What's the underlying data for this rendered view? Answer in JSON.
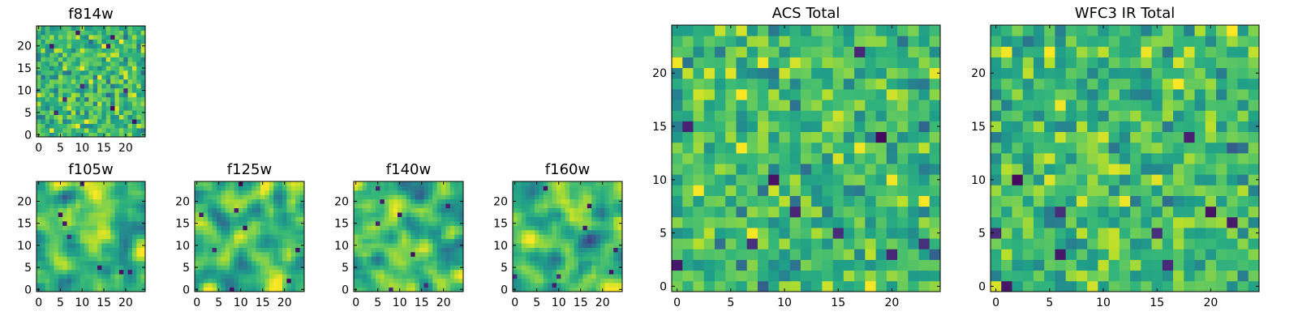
{
  "chart_data": [
    {
      "type": "heatmap",
      "id": "f814w",
      "title": "f814w",
      "grid_size": 25,
      "xticks": [
        0,
        5,
        10,
        15,
        20
      ],
      "yticks": [
        0,
        5,
        10,
        15,
        20
      ],
      "xlim": [
        -0.5,
        24.5
      ],
      "ylim": [
        -0.5,
        24.5
      ],
      "colormap": "viridis",
      "texture": "noise",
      "seed": 814
    },
    {
      "type": "heatmap",
      "id": "f105w",
      "title": "f105w",
      "grid_size": 25,
      "xticks": [
        0,
        5,
        10,
        15,
        20
      ],
      "yticks": [
        0,
        5,
        10,
        15,
        20
      ],
      "xlim": [
        -0.5,
        24.5
      ],
      "ylim": [
        -0.5,
        24.5
      ],
      "colormap": "viridis",
      "texture": "smooth",
      "seed": 105
    },
    {
      "type": "heatmap",
      "id": "f125w",
      "title": "f125w",
      "grid_size": 25,
      "xticks": [
        0,
        5,
        10,
        15,
        20
      ],
      "yticks": [
        0,
        5,
        10,
        15,
        20
      ],
      "xlim": [
        -0.5,
        24.5
      ],
      "ylim": [
        -0.5,
        24.5
      ],
      "colormap": "viridis",
      "texture": "smooth",
      "seed": 125
    },
    {
      "type": "heatmap",
      "id": "f140w",
      "title": "f140w",
      "grid_size": 25,
      "xticks": [
        0,
        5,
        10,
        15,
        20
      ],
      "yticks": [
        0,
        5,
        10,
        15,
        20
      ],
      "xlim": [
        -0.5,
        24.5
      ],
      "ylim": [
        -0.5,
        24.5
      ],
      "colormap": "viridis",
      "texture": "smooth",
      "seed": 140
    },
    {
      "type": "heatmap",
      "id": "f160w",
      "title": "f160w",
      "grid_size": 25,
      "xticks": [
        0,
        5,
        10,
        15,
        20
      ],
      "yticks": [
        0,
        5,
        10,
        15,
        20
      ],
      "xlim": [
        -0.5,
        24.5
      ],
      "ylim": [
        -0.5,
        24.5
      ],
      "colormap": "viridis",
      "texture": "smooth",
      "seed": 160
    },
    {
      "type": "heatmap",
      "id": "acs-total",
      "title": "ACS Total",
      "grid_size": 25,
      "xticks": [
        0,
        5,
        10,
        15,
        20
      ],
      "yticks": [
        0,
        5,
        10,
        15,
        20
      ],
      "xlim": [
        -0.5,
        24.5
      ],
      "ylim": [
        -0.5,
        24.5
      ],
      "colormap": "viridis",
      "texture": "noise",
      "seed": 1001
    },
    {
      "type": "heatmap",
      "id": "wfc3-ir-total",
      "title": "WFC3 IR Total",
      "grid_size": 25,
      "xticks": [
        0,
        5,
        10,
        15,
        20
      ],
      "yticks": [
        0,
        5,
        10,
        15,
        20
      ],
      "xlim": [
        -0.5,
        24.5
      ],
      "ylim": [
        -0.5,
        24.5
      ],
      "colormap": "viridis",
      "texture": "noise",
      "seed": 2002
    }
  ]
}
